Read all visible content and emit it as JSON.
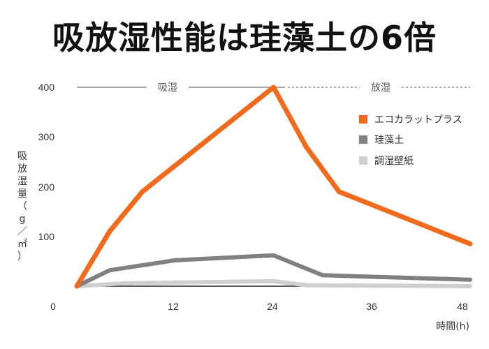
{
  "chart_data": {
    "type": "line",
    "title": "吸放湿性能は珪藻土の6倍",
    "xlabel": "時間(h)",
    "ylabel_chars": [
      "吸",
      "放",
      "湿",
      "量",
      "（",
      "g",
      "／",
      "㎡",
      "）"
    ],
    "x_ticks": [
      "0",
      "12",
      "24",
      "36",
      "48"
    ],
    "y_ticks": [
      "100",
      "200",
      "300",
      "400"
    ],
    "xlim": [
      0,
      48
    ],
    "ylim": [
      0,
      400
    ],
    "phases": {
      "absorb": "吸湿",
      "release": "放湿"
    },
    "legend_position": "right",
    "series": [
      {
        "name": "エコカラットプラス",
        "color": "#f26b1d",
        "x": [
          0,
          4,
          8,
          24,
          28,
          32,
          48
        ],
        "y": [
          0,
          110,
          190,
          400,
          280,
          190,
          85
        ]
      },
      {
        "name": "珪藻土",
        "color": "#808080",
        "x": [
          0,
          4,
          12,
          24,
          30,
          48
        ],
        "y": [
          0,
          32,
          52,
          62,
          22,
          13
        ]
      },
      {
        "name": "調湿壁紙",
        "color": "#cfcfcf",
        "x": [
          0,
          6,
          24,
          28,
          48
        ],
        "y": [
          0,
          6,
          10,
          2,
          0
        ]
      }
    ]
  }
}
